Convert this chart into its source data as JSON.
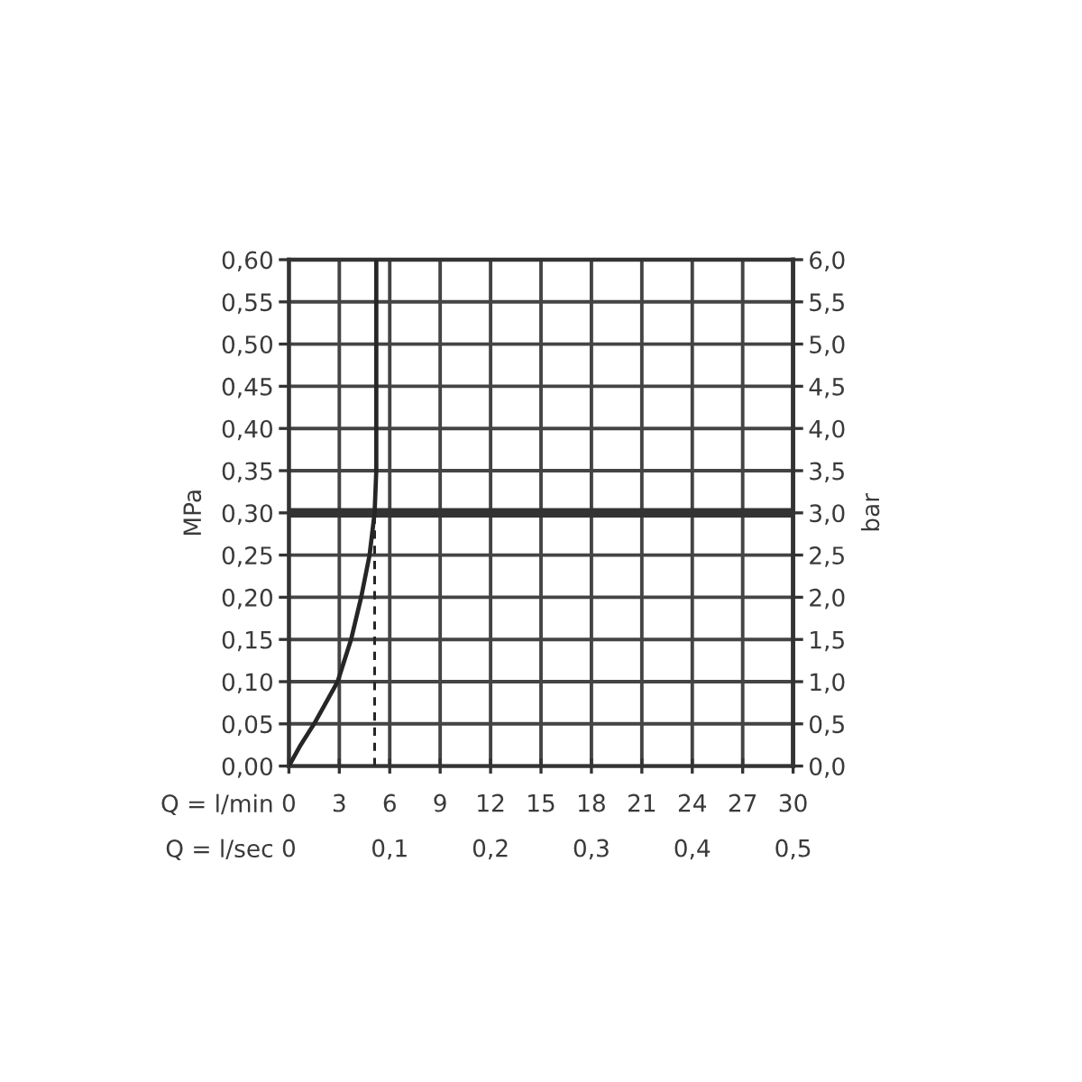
{
  "chart_data": {
    "type": "line",
    "xlabel": "Q = l/min",
    "x2label": "Q = l/sec",
    "ylabel": "MPa",
    "y2label": "bar",
    "xlim": [
      0,
      30
    ],
    "xticks": [
      0,
      3,
      6,
      9,
      12,
      15,
      18,
      21,
      24,
      27,
      30
    ],
    "x2lim": [
      0,
      0.5
    ],
    "x2ticks": [
      0,
      {
        "value": 0.1,
        "label": "0,1"
      },
      {
        "value": 0.2,
        "label": "0,2"
      },
      {
        "value": 0.3,
        "label": "0,3"
      },
      {
        "value": 0.4,
        "label": "0,4"
      },
      {
        "value": 0.5,
        "label": "0,5"
      }
    ],
    "ylim": [
      0,
      0.6
    ],
    "yticks": [
      {
        "value": 0,
        "label": "0,00"
      },
      {
        "value": 0.05,
        "label": "0,05"
      },
      {
        "value": 0.1,
        "label": "0,10"
      },
      {
        "value": 0.15,
        "label": "0,15"
      },
      {
        "value": 0.2,
        "label": "0,20"
      },
      {
        "value": 0.25,
        "label": "0,25"
      },
      {
        "value": 0.3,
        "label": "0,30"
      },
      {
        "value": 0.35,
        "label": "0,35"
      },
      {
        "value": 0.4,
        "label": "0,40"
      },
      {
        "value": 0.45,
        "label": "0,45"
      },
      {
        "value": 0.5,
        "label": "0,50"
      },
      {
        "value": 0.55,
        "label": "0,55"
      },
      {
        "value": 0.6,
        "label": "0,60"
      }
    ],
    "y2lim": [
      0,
      6
    ],
    "y2ticks": [
      {
        "value": 0,
        "label": "0,0"
      },
      {
        "value": 0.5,
        "label": "0,5"
      },
      {
        "value": 1,
        "label": "1,0"
      },
      {
        "value": 1.5,
        "label": "1,5"
      },
      {
        "value": 2,
        "label": "2,0"
      },
      {
        "value": 2.5,
        "label": "2,5"
      },
      {
        "value": 3,
        "label": "3,0"
      },
      {
        "value": 3.5,
        "label": "3,5"
      },
      {
        "value": 4,
        "label": "4,0"
      },
      {
        "value": 4.5,
        "label": "4,5"
      },
      {
        "value": 5,
        "label": "5,0"
      },
      {
        "value": 5.5,
        "label": "5,5"
      },
      {
        "value": 6,
        "label": "6,0"
      }
    ],
    "grid": true,
    "series": [
      {
        "x": [
          0,
          0.7,
          1.5,
          2.9,
          3.7,
          4.3,
          4.8,
          5.1,
          5.2,
          5.2,
          5.2
        ],
        "values": [
          0,
          0.025,
          0.05,
          0.1,
          0.15,
          0.2,
          0.25,
          0.3,
          0.35,
          0.4,
          0.6
        ],
        "color": "#262626"
      },
      {
        "type": "line",
        "line_style": "dashed",
        "x": [
          5.1,
          5.1
        ],
        "values": [
          0,
          0.3
        ],
        "color": "#262626"
      }
    ],
    "ref_lines": [
      {
        "axis": "y",
        "value": 0.3,
        "color": "#333333"
      }
    ]
  }
}
